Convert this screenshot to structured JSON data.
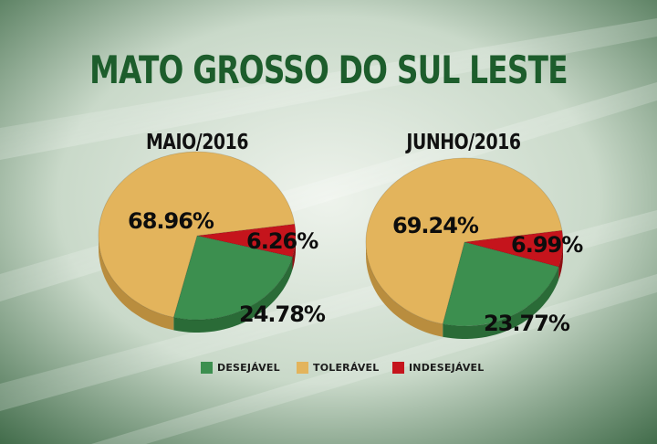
{
  "title": "MATO GROSSO DO SUL LESTE",
  "colors": {
    "desejavel": "#3c8f4f",
    "desejavel_dark": "#2a6b37",
    "toleravel": "#e3b45c",
    "toleravel_dark": "#b98d3e",
    "indesejavel": "#c5141c",
    "indesejavel_dark": "#8e0e12",
    "title": "#1d5d2c"
  },
  "legend": [
    {
      "label": "DESEJÁVEL",
      "color": "#3c8f4f"
    },
    {
      "label": "TOLERÁVEL",
      "color": "#e3b45c"
    },
    {
      "label": "INDESEJÁVEL",
      "color": "#c5141c"
    }
  ],
  "chart_data": [
    {
      "type": "pie",
      "title": "MAIO/2016",
      "categories": [
        "DESEJÁVEL",
        "TOLERÁVEL",
        "INDESEJÁVEL"
      ],
      "values": [
        24.78,
        68.96,
        6.26
      ],
      "labels": [
        "24.78%",
        "68.96%",
        "6.26%"
      ]
    },
    {
      "type": "pie",
      "title": "JUNHO/2016",
      "categories": [
        "DESEJÁVEL",
        "TOLERÁVEL",
        "INDESEJÁVEL"
      ],
      "values": [
        23.77,
        69.24,
        6.99
      ],
      "labels": [
        "23.77%",
        "69.24%",
        "6.99%"
      ]
    }
  ]
}
